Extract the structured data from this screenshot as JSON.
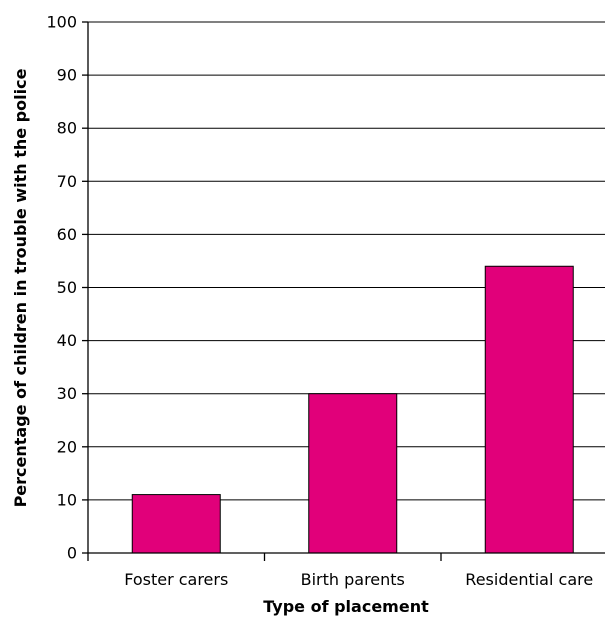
{
  "chart_data": {
    "type": "bar",
    "categories": [
      "Foster carers",
      "Birth parents",
      "Residential care"
    ],
    "values": [
      11,
      30,
      54
    ],
    "xlabel": "Type of placement",
    "ylabel": "Percentage of children in trouble with the police",
    "ylim": [
      0,
      100
    ],
    "yticks": [
      0,
      10,
      20,
      30,
      40,
      50,
      60,
      70,
      80,
      90,
      100
    ],
    "grid": true,
    "bar_color": "#E1007A"
  }
}
